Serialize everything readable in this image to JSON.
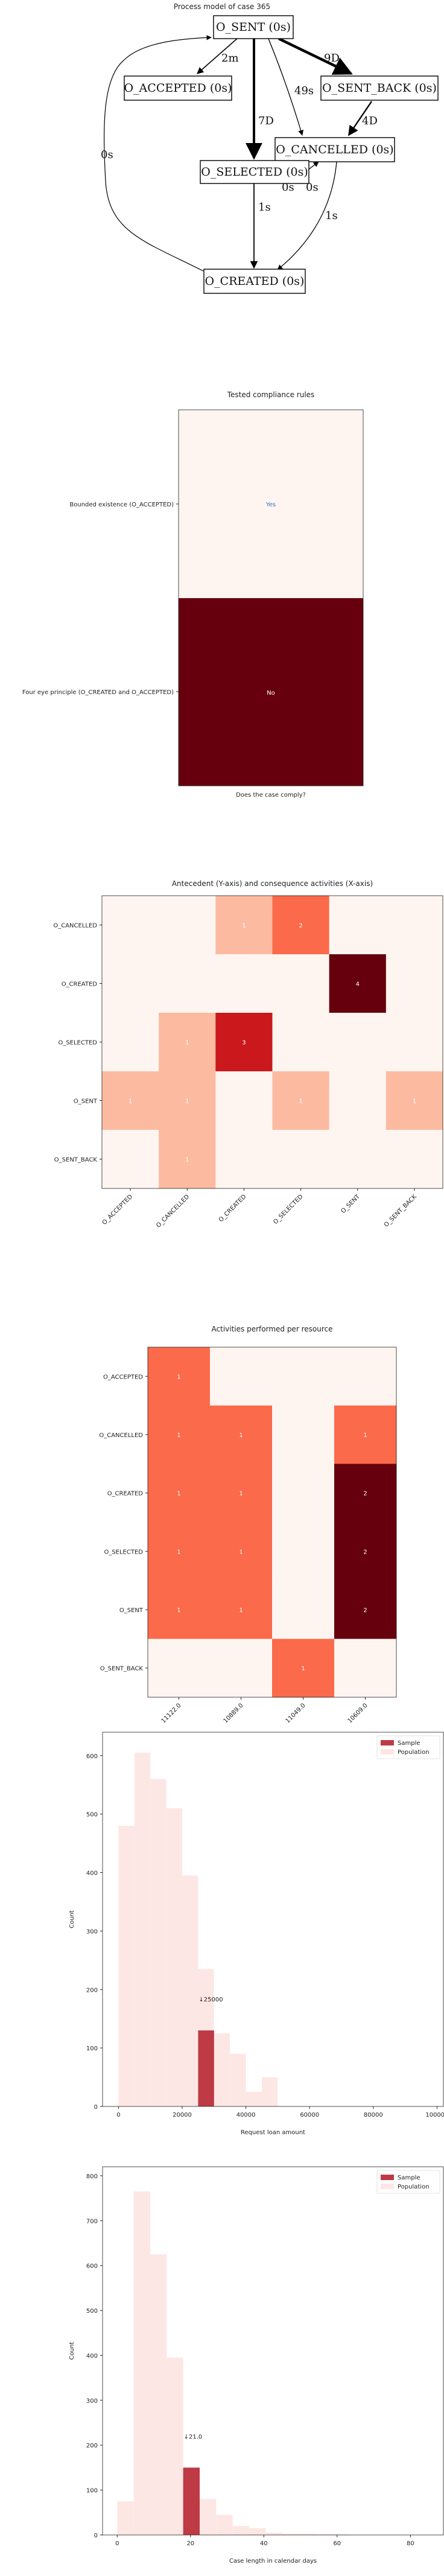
{
  "chart_data": [
    {
      "type": "diagram",
      "title": "Process model of case 365",
      "nodes": [
        {
          "id": "sent",
          "label": "O_SENT (0s)"
        },
        {
          "id": "accepted",
          "label": "O_ACCEPTED (0s)"
        },
        {
          "id": "sentback",
          "label": "O_SENT_BACK (0s)"
        },
        {
          "id": "cancelled",
          "label": "O_CANCELLED (0s)"
        },
        {
          "id": "selected",
          "label": "O_SELECTED (0s)"
        },
        {
          "id": "created",
          "label": "O_CREATED (0s)"
        }
      ],
      "edges": [
        {
          "from": "sent",
          "to": "accepted",
          "label": "2m"
        },
        {
          "from": "sent",
          "to": "sentback",
          "label": "9D"
        },
        {
          "from": "sent",
          "to": "selected",
          "label": "7D"
        },
        {
          "from": "sent",
          "to": "cancelled",
          "label": "49s"
        },
        {
          "from": "sentback",
          "to": "cancelled",
          "label": "4D"
        },
        {
          "from": "cancelled",
          "to": "selected",
          "label": "0s"
        },
        {
          "from": "selected",
          "to": "cancelled",
          "label": "0s"
        },
        {
          "from": "cancelled",
          "to": "created",
          "label": "1s"
        },
        {
          "from": "selected",
          "to": "created",
          "label": "1s"
        },
        {
          "from": "created",
          "to": "sent",
          "label": "0s"
        }
      ]
    },
    {
      "type": "heatmap",
      "title": "Tested compliance rules",
      "xlabel": "Does the case comply?",
      "rows": [
        "Bounded existence (O_ACCEPTED)",
        "Four eye principle (O_CREATED and O_ACCEPTED)"
      ],
      "cells": [
        "Yes",
        "No"
      ],
      "colors": [
        "#fff5f0",
        "#67000d"
      ]
    },
    {
      "type": "heatmap",
      "title": "Antecedent (Y-axis) and consequence activities (X-axis)",
      "x_labels": [
        "O_ACCEPTED",
        "O_CANCELLED",
        "O_CREATED",
        "O_SELECTED",
        "O_SENT",
        "O_SENT_BACK"
      ],
      "y_labels": [
        "O_CANCELLED",
        "O_CREATED",
        "O_SELECTED",
        "O_SENT",
        "O_SENT_BACK"
      ],
      "values": [
        [
          0,
          0,
          1,
          2,
          0,
          0
        ],
        [
          0,
          0,
          0,
          0,
          4,
          0
        ],
        [
          0,
          1,
          3,
          0,
          0,
          0
        ],
        [
          1,
          1,
          0,
          1,
          0,
          1
        ],
        [
          0,
          1,
          0,
          0,
          0,
          0
        ]
      ]
    },
    {
      "type": "heatmap",
      "title": "Activities performed per resource",
      "x_labels": [
        "11122.0",
        "10889.0",
        "11049.0",
        "10609.0"
      ],
      "y_labels": [
        "O_ACCEPTED",
        "O_CANCELLED",
        "O_CREATED",
        "O_SELECTED",
        "O_SENT",
        "O_SENT_BACK"
      ],
      "values": [
        [
          1,
          0,
          0,
          0
        ],
        [
          1,
          1,
          0,
          1
        ],
        [
          1,
          1,
          0,
          2
        ],
        [
          1,
          1,
          0,
          2
        ],
        [
          1,
          1,
          0,
          2
        ],
        [
          0,
          0,
          1,
          0
        ]
      ]
    },
    {
      "type": "bar",
      "xlabel": "Request loan amount",
      "ylabel": "Count",
      "xlim": [
        -5000,
        102000
      ],
      "ylim": [
        0,
        640
      ],
      "xticks": [
        0,
        20000,
        40000,
        60000,
        80000,
        100000
      ],
      "yticks": [
        0,
        100,
        200,
        300,
        400,
        500,
        600
      ],
      "bin_edges": [
        0,
        5000,
        10000,
        15000,
        20000,
        25000,
        30000,
        35000,
        40000,
        45000,
        50000,
        55000
      ],
      "population": [
        480,
        605,
        560,
        510,
        395,
        235,
        125,
        90,
        25,
        50,
        0
      ],
      "sample_bin": 5,
      "sample_count": 130,
      "annotation": "↓25000",
      "legend": [
        "Sample",
        "Population"
      ],
      "legend_position": "top-right"
    },
    {
      "type": "bar",
      "xlabel": "Case length in calendar days",
      "ylabel": "Count",
      "xlim": [
        -4,
        89
      ],
      "ylim": [
        0,
        820
      ],
      "xticks": [
        0,
        20,
        40,
        60,
        80
      ],
      "yticks": [
        0,
        100,
        200,
        300,
        400,
        500,
        600,
        700,
        800
      ],
      "bin_edges": [
        0,
        4.5,
        9,
        13.5,
        18,
        22.5,
        27,
        31.5,
        36,
        40.5,
        45,
        49.5,
        54,
        58.5,
        63
      ],
      "population": [
        75,
        765,
        625,
        395,
        150,
        80,
        45,
        20,
        15,
        5,
        3,
        3,
        2,
        2
      ],
      "sample_bin": 4,
      "sample_count": 150,
      "annotation": "↓21.0",
      "legend": [
        "Sample",
        "Population"
      ],
      "legend_position": "top-right"
    }
  ]
}
